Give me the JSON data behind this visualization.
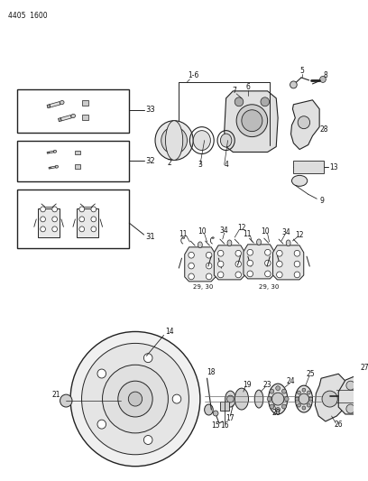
{
  "bg_color": "#ffffff",
  "page_id": "4405  1600",
  "fig_width": 4.08,
  "fig_height": 5.33,
  "dpi": 100,
  "lc": "#222222",
  "lw_thin": 0.5,
  "lw_med": 0.8,
  "lw_thick": 1.2,
  "fs": 5.5,
  "fs_small": 5.0
}
